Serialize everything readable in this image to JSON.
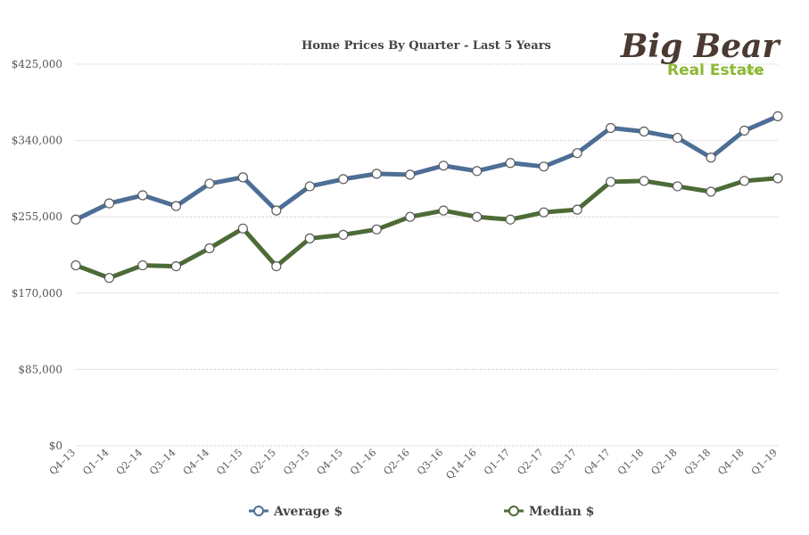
{
  "chart_data": {
    "type": "line",
    "title": "Home Prices By Quarter - Last 5 Years",
    "xlabel": "",
    "ylabel": "",
    "ylim": [
      0,
      425000
    ],
    "y_ticks": [
      "$0",
      "$85,000",
      "$170,000",
      "$255,000",
      "$340,000",
      "$425,000"
    ],
    "y_tick_values": [
      0,
      85000,
      170000,
      255000,
      340000,
      425000
    ],
    "grid": true,
    "legend_position": "bottom",
    "categories": [
      "Q4–13",
      "Q1–14",
      "Q2–14",
      "Q3–14",
      "Q4–14",
      "Q1–15",
      "Q2–15",
      "Q3–15",
      "Q4–15",
      "Q1–16",
      "Q2–16",
      "Q3–16",
      "Q14–16",
      "Q1–17",
      "Q2–17",
      "Q3–17",
      "Q4–17",
      "Q1–18",
      "Q2–18",
      "Q3–18",
      "Q4–18",
      "Q1–19"
    ],
    "series": [
      {
        "name": "Average $",
        "color": "#4d6e95",
        "values": [
          252000,
          270000,
          279000,
          267000,
          292000,
          299000,
          262000,
          289000,
          297000,
          303000,
          302000,
          312000,
          306000,
          315000,
          311000,
          326000,
          354000,
          350000,
          343000,
          321000,
          351000,
          367000
        ]
      },
      {
        "name": "Median $",
        "color": "#4d6b36",
        "values": [
          201000,
          187000,
          201000,
          200000,
          220000,
          242000,
          200000,
          231000,
          235000,
          241000,
          255000,
          262000,
          255000,
          252000,
          260000,
          263000,
          294000,
          295000,
          289000,
          283000,
          295000,
          298000
        ]
      }
    ]
  },
  "logo": {
    "line1": "Big Bear",
    "line2": "Real Estate",
    "suffix": ".com"
  }
}
